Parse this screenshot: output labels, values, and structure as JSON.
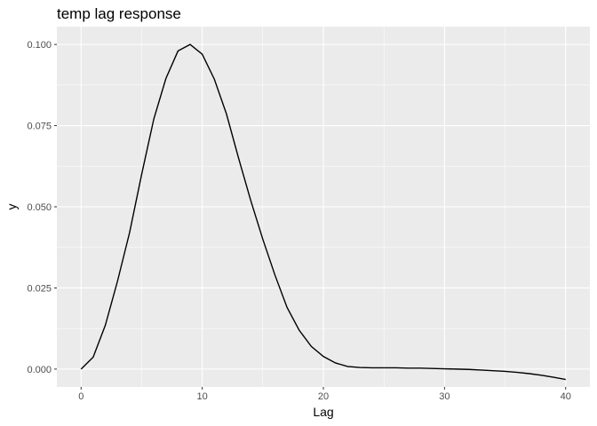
{
  "chart_data": {
    "type": "line",
    "title": "temp lag response",
    "xlabel": "Lag",
    "ylabel": "y",
    "xlim": [
      -2,
      42
    ],
    "ylim": [
      -0.0055,
      0.1055
    ],
    "xticks": [
      0,
      10,
      20,
      30,
      40
    ],
    "xtick_labels": [
      "0",
      "10",
      "20",
      "30",
      "40"
    ],
    "yticks": [
      0,
      0.025,
      0.05,
      0.075,
      0.1
    ],
    "ytick_labels": [
      "0.000",
      "0.025",
      "0.050",
      "0.075",
      "0.100"
    ],
    "grid": true,
    "background": "#ebebeb",
    "line_color": "#000000",
    "x": [
      0,
      1,
      2,
      3,
      4,
      5,
      6,
      7,
      8,
      9,
      10,
      11,
      12,
      13,
      14,
      15,
      16,
      17,
      18,
      19,
      20,
      21,
      22,
      23,
      24,
      25,
      26,
      27,
      28,
      29,
      30,
      31,
      32,
      33,
      34,
      35,
      36,
      37,
      38,
      39,
      40
    ],
    "values": [
      0,
      0.0037,
      0.0135,
      0.027,
      0.042,
      0.06,
      0.077,
      0.0895,
      0.098,
      0.1,
      0.097,
      0.0893,
      0.0786,
      0.065,
      0.052,
      0.04,
      0.029,
      0.019,
      0.012,
      0.007,
      0.0039,
      0.0019,
      0.0008,
      0.0005,
      0.0004,
      0.0004,
      0.0004,
      0.0003,
      0.0003,
      0.0002,
      0.0001,
      0,
      -0.0001,
      -0.0003,
      -0.0005,
      -0.0007,
      -0.001,
      -0.0014,
      -0.0019,
      -0.0025,
      -0.0032
    ]
  }
}
